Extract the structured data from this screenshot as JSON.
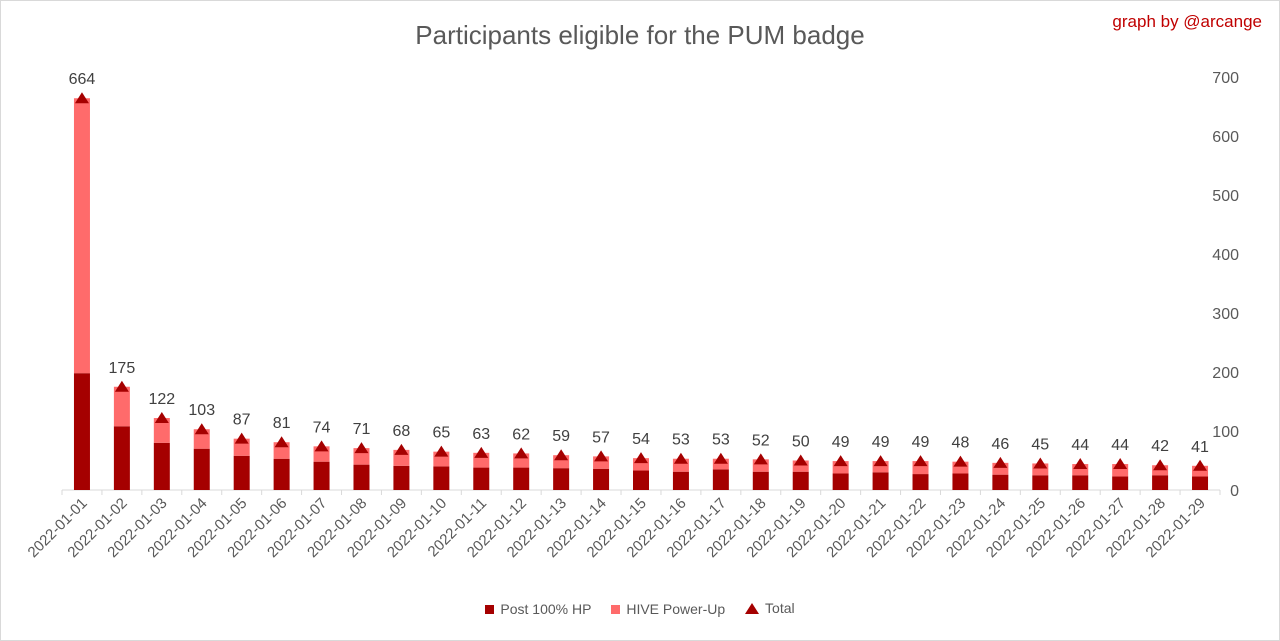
{
  "chart_data": {
    "type": "bar",
    "title": "Participants eligible for the PUM badge",
    "credit": "graph by @arcange",
    "stacked": true,
    "categories": [
      "2022-01-01",
      "2022-01-02",
      "2022-01-03",
      "2022-01-04",
      "2022-01-05",
      "2022-01-06",
      "2022-01-07",
      "2022-01-08",
      "2022-01-09",
      "2022-01-10",
      "2022-01-11",
      "2022-01-12",
      "2022-01-13",
      "2022-01-14",
      "2022-01-15",
      "2022-01-16",
      "2022-01-17",
      "2022-01-18",
      "2022-01-19",
      "2022-01-20",
      "2022-01-21",
      "2022-01-22",
      "2022-01-23",
      "2022-01-24",
      "2022-01-25",
      "2022-01-26",
      "2022-01-27",
      "2022-01-28",
      "2022-01-29"
    ],
    "series": [
      {
        "name": "Post 100% HP",
        "kind": "bar",
        "color": "#a50000",
        "values": [
          198,
          108,
          80,
          70,
          58,
          53,
          48,
          43,
          41,
          40,
          38,
          38,
          37,
          36,
          33,
          31,
          35,
          31,
          31,
          28,
          30,
          27,
          28,
          26,
          25,
          25,
          23,
          25,
          23
        ]
      },
      {
        "name": "HIVE Power-Up",
        "kind": "bar",
        "color": "#ff6b6b",
        "values": [
          466,
          67,
          42,
          33,
          29,
          28,
          26,
          28,
          27,
          25,
          25,
          24,
          22,
          21,
          21,
          22,
          18,
          21,
          19,
          21,
          19,
          22,
          20,
          20,
          20,
          19,
          21,
          17,
          18
        ]
      },
      {
        "name": "Total",
        "kind": "marker",
        "color": "#a50000",
        "values": [
          664,
          175,
          122,
          103,
          87,
          81,
          74,
          71,
          68,
          65,
          63,
          62,
          59,
          57,
          54,
          53,
          53,
          52,
          50,
          49,
          49,
          49,
          48,
          46,
          45,
          44,
          44,
          42,
          41
        ]
      }
    ],
    "y_axis": {
      "side": "right",
      "ylim": [
        0,
        700
      ],
      "ticks": [
        0,
        100,
        200,
        300,
        400,
        500,
        600,
        700
      ]
    },
    "data_labels_on": "Total",
    "grid": false,
    "legend_position": "bottom"
  }
}
